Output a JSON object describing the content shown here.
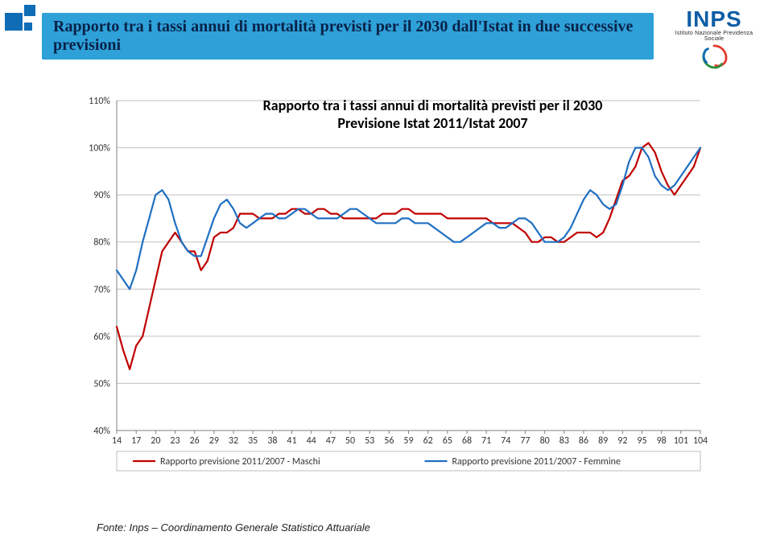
{
  "header": {
    "title": "Rapporto tra i tassi annui di mortalità previsti per il 2030 dall'Istat in due successive previsioni"
  },
  "logo": {
    "name": "INPS",
    "tagline": "Istituto Nazionale Previdenza Sociale",
    "text_color": "#0f5ea6",
    "swirl_colors": [
      "#e23b2e",
      "#2d8f3c",
      "#0f6db6"
    ]
  },
  "footer": {
    "text": "Fonte: Inps – Coordinamento Generale Statistico Attuariale"
  },
  "chart": {
    "type": "line",
    "title_line1": "Rapporto tra i tassi annui di mortalità previsti per il 2030",
    "title_line2": "Previsione Istat 2011/Istat 2007",
    "title_fontsize": 18,
    "background_color": "#ffffff",
    "grid_color": "#bfbfbf",
    "axis_color": "#808080",
    "ylim": [
      40,
      110
    ],
    "ytick_step": 10,
    "ytick_labels": [
      "40%",
      "50%",
      "60%",
      "70%",
      "80%",
      "90%",
      "100%",
      "110%"
    ],
    "x_categories": [
      14,
      15,
      16,
      17,
      18,
      19,
      20,
      21,
      22,
      23,
      24,
      25,
      26,
      27,
      28,
      29,
      30,
      31,
      32,
      33,
      34,
      35,
      36,
      37,
      38,
      39,
      40,
      41,
      42,
      43,
      44,
      45,
      46,
      47,
      48,
      49,
      50,
      51,
      52,
      53,
      54,
      55,
      56,
      57,
      58,
      59,
      60,
      61,
      62,
      63,
      64,
      65,
      66,
      67,
      68,
      69,
      70,
      71,
      72,
      73,
      74,
      75,
      76,
      77,
      78,
      79,
      80,
      81,
      82,
      83,
      84,
      85,
      86,
      87,
      88,
      89,
      90,
      91,
      92,
      93,
      94,
      95,
      96,
      97,
      98,
      99,
      100,
      101,
      102,
      103,
      104
    ],
    "x_tick_every": 3,
    "x_tick_labels": [
      "14",
      "17",
      "20",
      "23",
      "26",
      "29",
      "32",
      "35",
      "38",
      "41",
      "44",
      "47",
      "50",
      "53",
      "56",
      "59",
      "62",
      "65",
      "68",
      "71",
      "74",
      "77",
      "80",
      "83",
      "86",
      "89",
      "92",
      "95",
      "98",
      "101",
      "104"
    ],
    "series": [
      {
        "name": "Rapporto previsione 2011/2007 - Maschi",
        "color": "#c00000",
        "line_width": 2.2,
        "values": [
          62,
          57,
          53,
          58,
          60,
          66,
          72,
          78,
          80,
          82,
          80,
          78,
          78,
          74,
          76,
          81,
          82,
          82,
          83,
          86,
          86,
          86,
          85,
          85,
          85,
          86,
          86,
          87,
          87,
          86,
          86,
          87,
          87,
          86,
          86,
          85,
          85,
          85,
          85,
          85,
          85,
          86,
          86,
          86,
          87,
          87,
          86,
          86,
          86,
          86,
          86,
          85,
          85,
          85,
          85,
          85,
          85,
          85,
          84,
          84,
          84,
          84,
          83,
          82,
          80,
          80,
          81,
          81,
          80,
          80,
          81,
          82,
          82,
          82,
          81,
          82,
          85,
          89,
          93,
          94,
          96,
          100,
          101,
          99,
          95,
          92,
          90,
          92,
          94,
          96,
          100
        ]
      },
      {
        "name": "Rapporto previsione 2011/2007 - Femmine",
        "color": "#1f6fc2",
        "line_width": 2.2,
        "values": [
          74,
          72,
          70,
          74,
          80,
          85,
          90,
          91,
          89,
          84,
          80,
          78,
          77,
          77,
          81,
          85,
          88,
          89,
          87,
          84,
          83,
          84,
          85,
          86,
          86,
          85,
          85,
          86,
          87,
          87,
          86,
          85,
          85,
          85,
          85,
          86,
          87,
          87,
          86,
          85,
          84,
          84,
          84,
          84,
          85,
          85,
          84,
          84,
          84,
          83,
          82,
          81,
          80,
          80,
          81,
          82,
          83,
          84,
          84,
          83,
          83,
          84,
          85,
          85,
          84,
          82,
          80,
          80,
          80,
          81,
          83,
          86,
          89,
          91,
          90,
          88,
          87,
          88,
          92,
          97,
          100,
          100,
          98,
          94,
          92,
          91,
          92,
          94,
          96,
          98,
          100
        ]
      }
    ],
    "legend": {
      "position": "bottom"
    }
  }
}
